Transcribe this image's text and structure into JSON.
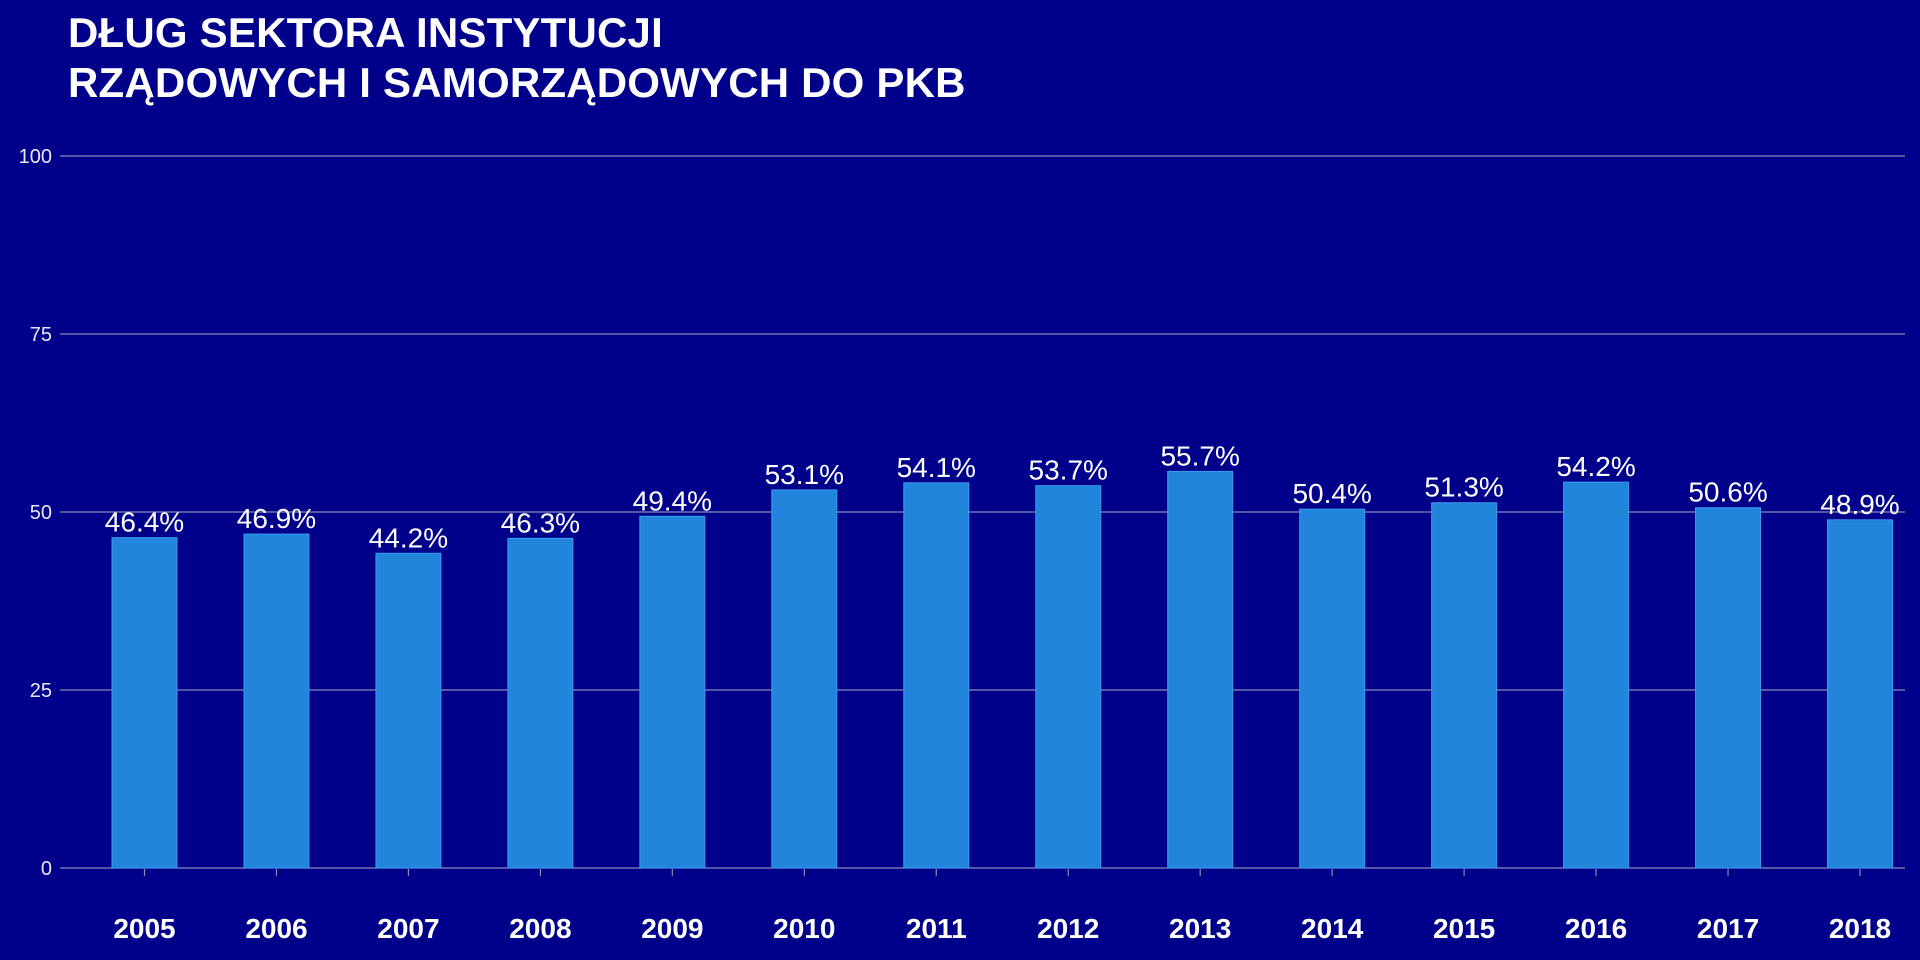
{
  "chart_data": {
    "type": "bar",
    "title_lines": [
      "DŁUG SEKTORA INSTYTUCJI",
      "RZĄDOWYCH I SAMORZĄDOWYCH DO PKB"
    ],
    "categories": [
      "2005",
      "2006",
      "2007",
      "2008",
      "2009",
      "2010",
      "2011",
      "2012",
      "2013",
      "2014",
      "2015",
      "2016",
      "2017",
      "2018"
    ],
    "values": [
      46.4,
      46.9,
      44.2,
      46.3,
      49.4,
      53.1,
      54.1,
      53.7,
      55.7,
      50.4,
      51.3,
      54.2,
      50.6,
      48.9
    ],
    "data_labels": [
      "46.4%",
      "46.9%",
      "44.2%",
      "46.3%",
      "49.4%",
      "53.1%",
      "54.1%",
      "53.7%",
      "55.7%",
      "50.4%",
      "51.3%",
      "54.2%",
      "50.6%",
      "48.9%"
    ],
    "ylim": [
      0,
      100
    ],
    "yticks": [
      0,
      25,
      50,
      75,
      100
    ],
    "grid": true,
    "colors": {
      "background": "#00008B",
      "bar": "#2185DC",
      "bar_edge": "#3A9AEC",
      "grid": "#8A8AB8",
      "axis_tick": "#8A8AB8",
      "text": "#FFFFFF"
    }
  }
}
